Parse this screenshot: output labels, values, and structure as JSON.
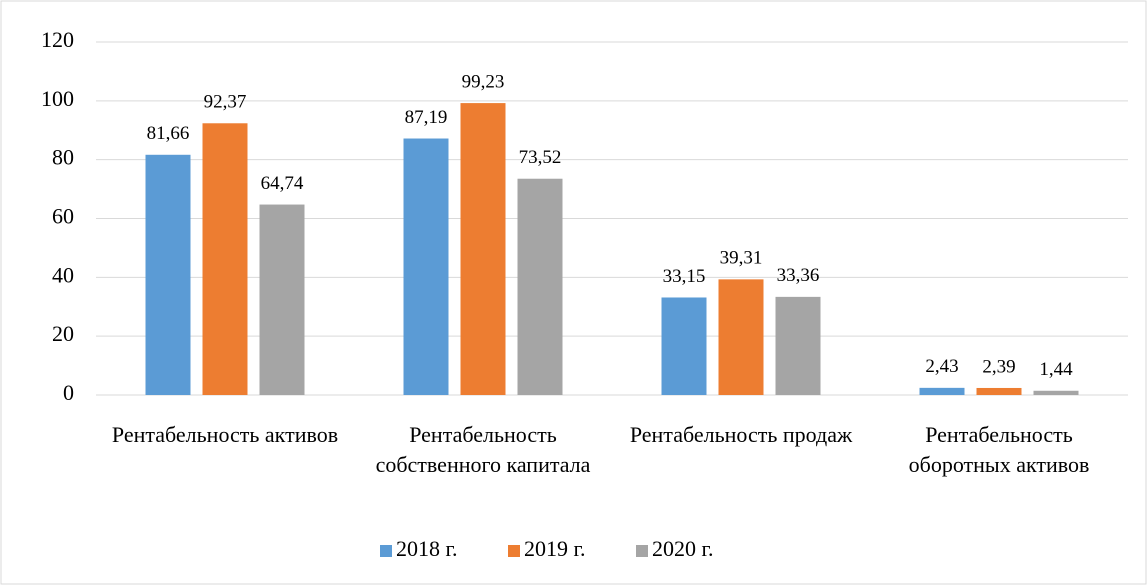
{
  "chart_data": {
    "type": "bar",
    "categories": [
      "Рентабельность активов",
      "Рентабельность собственного капитала",
      "Рентабельность продаж",
      "Рентабельность оборотных активов"
    ],
    "series": [
      {
        "name": "2018 г.",
        "color": "#5b9bd5",
        "values": [
          81.66,
          87.19,
          33.15,
          2.43
        ],
        "value_labels": [
          "81,66",
          "87,19",
          "33,15",
          "2,43"
        ]
      },
      {
        "name": "2019 г.",
        "color": "#ed7d31",
        "values": [
          92.37,
          99.23,
          39.31,
          2.39
        ],
        "value_labels": [
          "92,37",
          "99,23",
          "39,31",
          "2,39"
        ]
      },
      {
        "name": "2020 г.",
        "color": "#a5a5a5",
        "values": [
          64.74,
          73.52,
          33.36,
          1.44
        ],
        "value_labels": [
          "64,74",
          "73,52",
          "33,36",
          "1,44"
        ]
      }
    ],
    "ylim": [
      0,
      120
    ],
    "yticks": [
      0,
      20,
      40,
      60,
      80,
      100,
      120
    ],
    "grid": true,
    "legend": "bottom"
  }
}
